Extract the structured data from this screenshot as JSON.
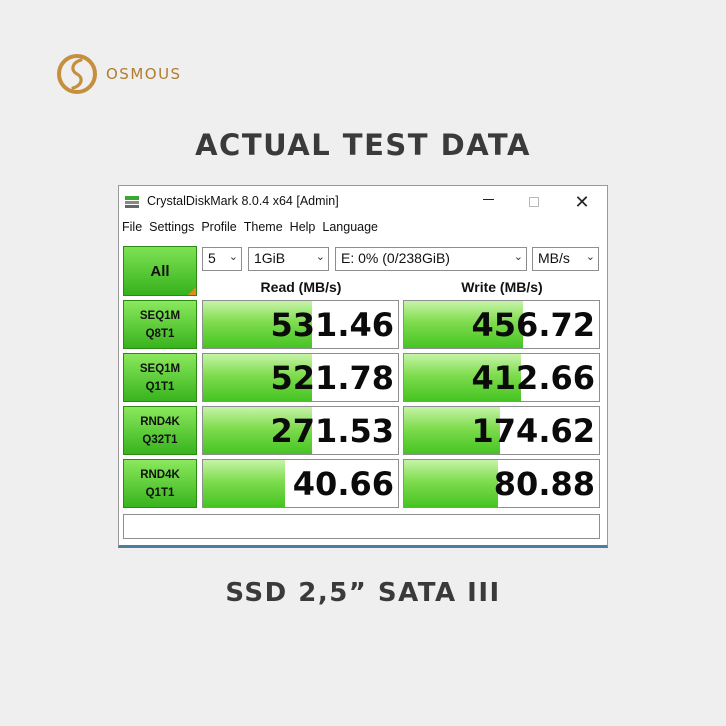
{
  "brand": {
    "name": "OSMOUS"
  },
  "headline": "ACTUAL TEST DATA",
  "product": "SSD 2,5” SATA III",
  "window": {
    "title": "CrystalDiskMark 8.0.4 x64 [Admin]",
    "icon": "disk-app-icon",
    "controls": {
      "minimize": "minimize-icon",
      "maximize": "maximize-icon",
      "close": "✕"
    }
  },
  "menu": [
    "File",
    "Settings",
    "Profile",
    "Theme",
    "Help",
    "Language"
  ],
  "controls": {
    "all_label": "All",
    "count": "5",
    "size": "1GiB",
    "drive": "E: 0% (0/238GiB)",
    "unit": "MB/s"
  },
  "columns": {
    "read": "Read (MB/s)",
    "write": "Write (MB/s)"
  },
  "rows": [
    {
      "line1": "SEQ1M",
      "line2": "Q8T1",
      "read": "531.46",
      "write": "456.72",
      "read_fill": 0.56,
      "write_fill": 0.61
    },
    {
      "line1": "SEQ1M",
      "line2": "Q1T1",
      "read": "521.78",
      "write": "412.66",
      "read_fill": 0.56,
      "write_fill": 0.6
    },
    {
      "line1": "RND4K",
      "line2": "Q32T1",
      "read": "271.53",
      "write": "174.62",
      "read_fill": 0.56,
      "write_fill": 0.49
    },
    {
      "line1": "RND4K",
      "line2": "Q1T1",
      "read": "40.66",
      "write": "80.88",
      "read_fill": 0.42,
      "write_fill": 0.48
    }
  ],
  "comment": "",
  "colors": {
    "accent_green": "#45c423",
    "brand_gold": "#b07d2e",
    "corner_orange": "#e8891a"
  }
}
